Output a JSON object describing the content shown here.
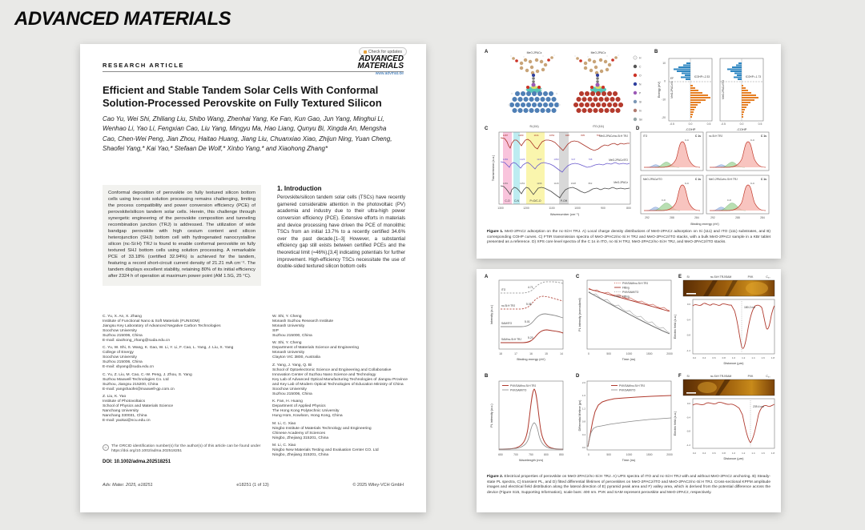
{
  "brand": {
    "logo": "ADVANCED MATERIALS"
  },
  "paper": {
    "kicker": "RESEARCH ARTICLE",
    "badge": "Check for updates",
    "logo_line1": "ADVANCED",
    "logo_line2": "MATERIALS",
    "logo_url": "www.advmat.de",
    "title": "Efficient and Stable Tandem Solar Cells With Conformal Solution-Processed Perovskite on Fully Textured Silicon",
    "authors": "Cao Yu, Wei Shi, Zhiliang Liu, Shibo Wang, Zhenhai Yang, Ke Fan, Kun Gao, Jun Yang, Minghui Li, Wenhao Li, Yao Li, Fengxian Cao, Liu Yang, Mingyu Ma, Hao Liang, Qunyu Bi, Xingda An, Mengsha Cao, Chen-Wei Peng, Jian Zhou, Haitao Huang, Jiang Liu, Chuanxiao Xiao, Zhijun Ning, Yuan Cheng, Shaofei Yang,* Kai Yao,* Stefaan De Wolf,* Xinbo Yang,* and Xiaohong Zhang*",
    "abstract": "Conformal deposition of perovskite on fully textured silicon bottom cells using low-cost solution processing remains challenging, limiting the process compatibility and power conversion efficiency (PCE) of perovskite/silicon tandem solar cells. Herein, this challenge through synergetic engineering of the perovskite composition and tunneling recombination junction (TRJ) is addressed. The utilization of wide bandgap perovskite with high cesium content and silicon heterojunction (SHJ) bottom cell with hydrogenated nanocrystalline silicon (nc-Si:H) TRJ is found to enable conformal perovskite on fully textured SHJ bottom cells using solution processing. A remarkable PCE of 33.18% (certified 32.94%) is achieved for the tandem, featuring a record short-circuit current density of 21.21 mA cm⁻². The tandem displays excellent stability, retaining 80% of its initial efficiency after 2324 h of operation at maximum power point (AM 1.5G, 25 °C).",
    "intro_heading": "1. Introduction",
    "intro_text": "Perovskite/silicon tandem solar cells (TSCs) have recently garnered considerable attention in the photovoltaic (PV) academia and industry due to their ultra-high power conversion efficiency (PCE). Extensive efforts in materials and device processing have driven the PCE of monolithic TSCs from an initial 13.7% to a recently certified 34.6% over the past decade.[1–3] However, a substantial efficiency gap still exists between certified PCEs and the theoretical limit (≈46%),[3,4] indicating potentials for further improvement. High-efficiency TSCs necessitate the use of double-sided textured silicon bottom cells",
    "affiliations_left": [
      "C. Yu, X. An, X. Zhang\nInstitute of Functional Nano & Soft Materials (FUNSOM)\nJiangsu Key Laboratory of Advanced Negative Carbon Technologies\nSoochow University\nSuzhou 215006, China\nE-mail: xiaohong_zhang@suda.edu.cn",
      "C. Yu, W. Shi, S. Wang, K. Gao, W. Li, Y. Li, F. Cao, L. Yang, J. Liu, X. Yang\nCollege of Energy\nSoochow University\nSuzhou 215006, China\nE-mail: xbyang@suda.edu.cn",
      "C. Yu, Z. Liu, M. Cao, C.-W. Peng, J. Zhou, S. Yang\nSuzhou Maxwell Technologies Co. Ltd\nSuzhou, Jiangsu 215200, China\nE-mail: yangshaofei@maxwell-gp.com.cn",
      "Z. Liu, K. Yao\nInstitute of Photovoltaics\nSchool of Physics and Materials Science\nNanchang University\nNanchang 330031, China\nE-mail: yaokai@ncu.edu.cn"
    ],
    "affiliations_right": [
      "W. Shi, Y. Cheng\nMonash Suzhou Research Institute\nMonash University\nSIP\nSuzhou 215000, China",
      "W. Shi, Y. Cheng\nDepartment of Materials Science and Engineering\nMonash University\nClayton VIC 3800, Australia",
      "Z. Yang, J. Yang, Q. Bi\nSchool of Optoelectronic Science and Engineering and Collaborative Innovation Center of Suzhou Nano Science and Technology\nKey Lab of Advanced Optical Manufacturing Technologies of Jiangsu Province and Key Lab of Modern Optical Technologies of Education Ministry of China\nSoochow University\nSuzhou 215006, China",
      "K. Fan, H. Huang\nDepartment of Applied Physics\nThe Hong Kong Polytechnic University\nHung Hom, Kowloon, Hong Kong, China",
      "M. Li, C. Xiao\nNingbo Institute of Materials Technology and Engineering\nChinese Academy of Sciences\nNingbo, Zhejiang 315201, China",
      "M. Li, C. Xiao\nNingbo New Materials Testing and Evaluation Center CO. Ltd\nNingbo, Zhejiang 315201, China"
    ],
    "orcid_note": "The ORCID identification number(s) for the author(s) of this article can be found under https://doi.org/10.1002/adma.202518251",
    "orcid_icon": "iD",
    "doi": "DOI: 10.1002/adma.202518251",
    "footer_left": "Adv. Mater. 2025, e18251",
    "footer_center": "e18251 (1 of 13)",
    "footer_right": "© 2025 Wiley-VCH GmbH"
  },
  "figure1": {
    "panels": {
      "a": "A",
      "b": "B",
      "c": "C",
      "d": "D"
    },
    "mol_left_title": "MeO-2PACz",
    "mol_right_title": "MeO-2PACz",
    "substrate_left": "Si (111)",
    "substrate_right": "ITO (111)",
    "atom_legend": [
      "H",
      "C",
      "O",
      "N",
      "P",
      "Si",
      "In",
      "Sn"
    ],
    "cohp": {
      "plot1_title": "MeO-2PACz/Si",
      "plot2_title": "MeO-2PACz/ITO",
      "icohp1": "ICOHP=-2.33",
      "icohp2": "ICOHP=-1.73",
      "ef": "EF",
      "xlabel1": "-COHP",
      "xlabel2": "-COHP",
      "ylabel": "Energy (eV)",
      "xticks": [
        "-0.5",
        "0.0",
        "0.5"
      ],
      "yticks": [
        "10",
        "0",
        "-10",
        "-20"
      ]
    },
    "ftir": {
      "ylabel": "Transmission (a.u.)",
      "xlabel": "Wavenumber (cm⁻¹)",
      "xticks": [
        "1300",
        "1200",
        "1100",
        "1000",
        "900",
        "800"
      ],
      "band1": "C-O",
      "band2": "C-N",
      "band3": "P=O/C-O",
      "band4": "P-OH",
      "curve1": "MeO-2PACz/nc-Si:H TRJ",
      "curve2": "MeO-2PACz/ITO",
      "curve3": "MeO-2PACz",
      "peaks1": [
        "1287",
        "1260",
        "1131",
        "1052",
        "948",
        "835",
        "762"
      ],
      "peaks2": [
        "1282",
        "1226",
        "1137",
        "1052",
        "947",
        "798"
      ],
      "peaks3": [
        "1281",
        "1251",
        "1196",
        "1126",
        "1028",
        "802"
      ]
    },
    "xps": {
      "xlabel": "Binding energy (eV)",
      "species": "C 1s",
      "peak_label": "C-C",
      "sub_peak_label": "C-O",
      "samples": [
        "ITO",
        "nc-Si:H TRJ",
        "MeO-2PACz/ITO",
        "MeO-2PACz/nc-Si:H TRJ"
      ],
      "xticks": [
        "292",
        "288",
        "284"
      ]
    },
    "caption_prefix": "Figure 1.",
    "caption_text": " MeO-2PACz adsorption on the nc-Si:H TRJ. A) Local charge density distributions of MeO-2PACz adsorption on Si (111) and ITO (111) substrates, and B) corresponding COHP curves. C) FTIR transmission spectra of MeO-2PACz/nc-Si:H TRJ and MeO-2PACz/ITO stacks, with a bulk MeO-2PACz sample in a KBr tablet presented as a reference. D) XPS core level spectra of the C 1s in ITO, nc-Si:H TRJ, MeO-2PACz/nc-Si:H TRJ, and MeO-2PACz/ITO stacks."
  },
  "figure2": {
    "panels": {
      "a": "A",
      "b": "B",
      "c": "C",
      "d": "D",
      "e": "E",
      "f": "F"
    },
    "ups": {
      "curve1": "ITO",
      "curve2": "nc-Si:H TRJ",
      "curve3": "SAM/ITO",
      "curve4": "SAM/nc-Si:H TRJ",
      "val1": "4.71",
      "val2": "5.05",
      "val3": "5.01",
      "val4": "5.20",
      "xlabel": "Binding energy (eV)",
      "ylabel": "Intensity (a.u.)",
      "xticks": [
        "18",
        "17",
        "16",
        "15",
        "14"
      ]
    },
    "trpl": {
      "legend": [
        "PVK/SAM/nc-Si:H TRJ",
        "Fitting",
        "PVK/SAM/ITO",
        "Fitting"
      ],
      "ylabel": "PL intensity (normalized)",
      "xlabel": "Time (ns)",
      "xticks": [
        "0",
        "500",
        "1000",
        "1500",
        "2000"
      ]
    },
    "pl": {
      "legend": [
        "PVK/SAM/nc-Si:H TRJ",
        "PVK/SAM/ITO"
      ],
      "ylabel": "PL intensity (a.u.)",
      "xlabel": "Wavelength (nm)",
      "xticks": [
        "650",
        "700",
        "750",
        "800",
        "850"
      ]
    },
    "lifetime": {
      "legend": [
        "PVK/SAM/nc-Si:H TRJ",
        "PVK/SAM/ITO"
      ],
      "ylabel": "Differential lifetime (μs)",
      "xlabel": "Time (ns)",
      "xticks": [
        "0",
        "500",
        "1000",
        "1500",
        "2000"
      ],
      "yticks": [
        "2.0",
        "1.6",
        "1.2",
        "0.8",
        "0.4",
        "0.0"
      ]
    },
    "kpfm_e": {
      "layers": {
        "l1": "Si",
        "l2": "nc-Si:H TRJ/SAM",
        "l3": "PVK",
        "l4": "C₆₀"
      },
      "annotation": "180.2 nm",
      "ylabel": "Electric field (a.u.)",
      "xlabel": "Distance (μm)",
      "xticks": [
        "0.2",
        "0.4",
        "0.6",
        "0.8",
        "1.0",
        "1.2",
        "1.4",
        "1.6",
        "1.8"
      ],
      "yticks": [
        "0.0",
        "-0.4",
        "-0.8",
        "-1.2"
      ]
    },
    "kpfm_f": {
      "layers": {
        "l1": "Si",
        "l2": "nc-Si:H TRJ/SAM",
        "l3": "PVK",
        "l4": "C₆₀"
      },
      "annotation": "239.4 nm",
      "ylabel": "Electric field (a.u.)",
      "xlabel": "Distance (μm)",
      "xticks": [
        "0.2",
        "0.4",
        "0.6",
        "0.8",
        "1.0",
        "1.2",
        "1.4",
        "1.6",
        "1.8"
      ],
      "yticks": [
        "0.0",
        "-0.4",
        "-0.8",
        "-1.2"
      ]
    },
    "caption_prefix": "Figure 2.",
    "caption_text": " Electrical properties of perovskite on MeO-2PACz/nc-Si:H TRJ. A) UPS spectra of ITO and nc-Si:H TRJ with and without MeO-2PACz anchoring. B) Steady-state PL spectra, C) transient PL, and D) fitted differential lifetimes of perovskites on MeO-2PACz/ITO and MeO-2PACz/nc-Si:H TRJ. Cross-sectional KPFM amplitude images and electrical field distribution along the lateral direction of E) pyramid peak area and F) valley area, which is derived from the potential difference across the device (Figure S15, Supporting Information), scale bars: 400 nm. PVK and SAM represent perovskite and MeO-2PACz, respectively."
  },
  "chart_data": [
    {
      "type": "bar",
      "title": "COHP of MeO-2PACz adsorption",
      "series": [
        {
          "name": "MeO-2PACz/Si",
          "ICOHP": -2.33
        },
        {
          "name": "MeO-2PACz/ITO",
          "ICOHP": -1.73
        }
      ],
      "xlabel": "-COHP",
      "ylabel": "Energy (eV)",
      "xlim": [
        -0.5,
        0.5
      ]
    },
    {
      "type": "line",
      "title": "FTIR transmission spectra",
      "series": [
        "MeO-2PACz/nc-Si:H TRJ",
        "MeO-2PACz/ITO",
        "MeO-2PACz"
      ],
      "xlabel": "Wavenumber (cm⁻¹)",
      "x_range": [
        1300,
        750
      ],
      "peak_positions_cm1": [
        1287,
        1282,
        1281,
        1260,
        1251,
        1226,
        1196,
        1137,
        1131,
        1126,
        1052,
        1028,
        948,
        947,
        835,
        802,
        798,
        762
      ],
      "bands": [
        "C-O",
        "C-N",
        "P=O/C-O",
        "P-OH"
      ]
    },
    {
      "type": "line",
      "title": "XPS C 1s core level",
      "categories": [
        "ITO",
        "nc-Si:H TRJ",
        "MeO-2PACz/ITO",
        "MeO-2PACz/nc-Si:H TRJ"
      ],
      "xlabel": "Binding energy (eV)",
      "main_peak": "C-C"
    },
    {
      "type": "line",
      "title": "UPS secondary electron cutoff",
      "series": [
        {
          "name": "ITO",
          "value_eV": 4.71
        },
        {
          "name": "nc-Si:H TRJ",
          "value_eV": 5.05
        },
        {
          "name": "SAM/ITO",
          "value_eV": 5.01
        },
        {
          "name": "SAM/nc-Si:H TRJ",
          "value_eV": 5.2
        }
      ],
      "xlabel": "Binding energy (eV)",
      "x_range": [
        18,
        14
      ]
    },
    {
      "type": "scatter",
      "title": "Transient PL",
      "series": [
        "PVK/SAM/nc-Si:H TRJ",
        "PVK/SAM/ITO"
      ],
      "xlabel": "Time (ns)",
      "x_range": [
        0,
        2000
      ],
      "note": "PVK/SAM/nc-Si:H TRJ decays slower than PVK/SAM/ITO"
    },
    {
      "type": "line",
      "title": "Steady-state PL",
      "series": [
        "PVK/SAM/nc-Si:H TRJ (higher)",
        "PVK/SAM/ITO (lower)"
      ],
      "xlabel": "Wavelength (nm)",
      "x_range": [
        650,
        850
      ],
      "peak_nm": 763
    },
    {
      "type": "line",
      "title": "Fitted differential lifetime",
      "series": [
        {
          "name": "PVK/SAM/nc-Si:H TRJ",
          "plateau_us": 1.6
        },
        {
          "name": "PVK/SAM/ITO",
          "plateau_us": 0.9
        }
      ],
      "xlabel": "Time (ns)",
      "ylabel": "Differential lifetime (μs)",
      "ylim": [
        0,
        2
      ],
      "x_range": [
        0,
        2000
      ]
    },
    {
      "type": "line",
      "title": "Electric field across device from KPFM",
      "xlabel": "Distance (μm)",
      "x_range": [
        0.2,
        1.8
      ],
      "ylim": [
        -1.2,
        0
      ],
      "dip_pyramid_peak_nm": 180.2,
      "dip_valley_nm": 239.4
    }
  ]
}
